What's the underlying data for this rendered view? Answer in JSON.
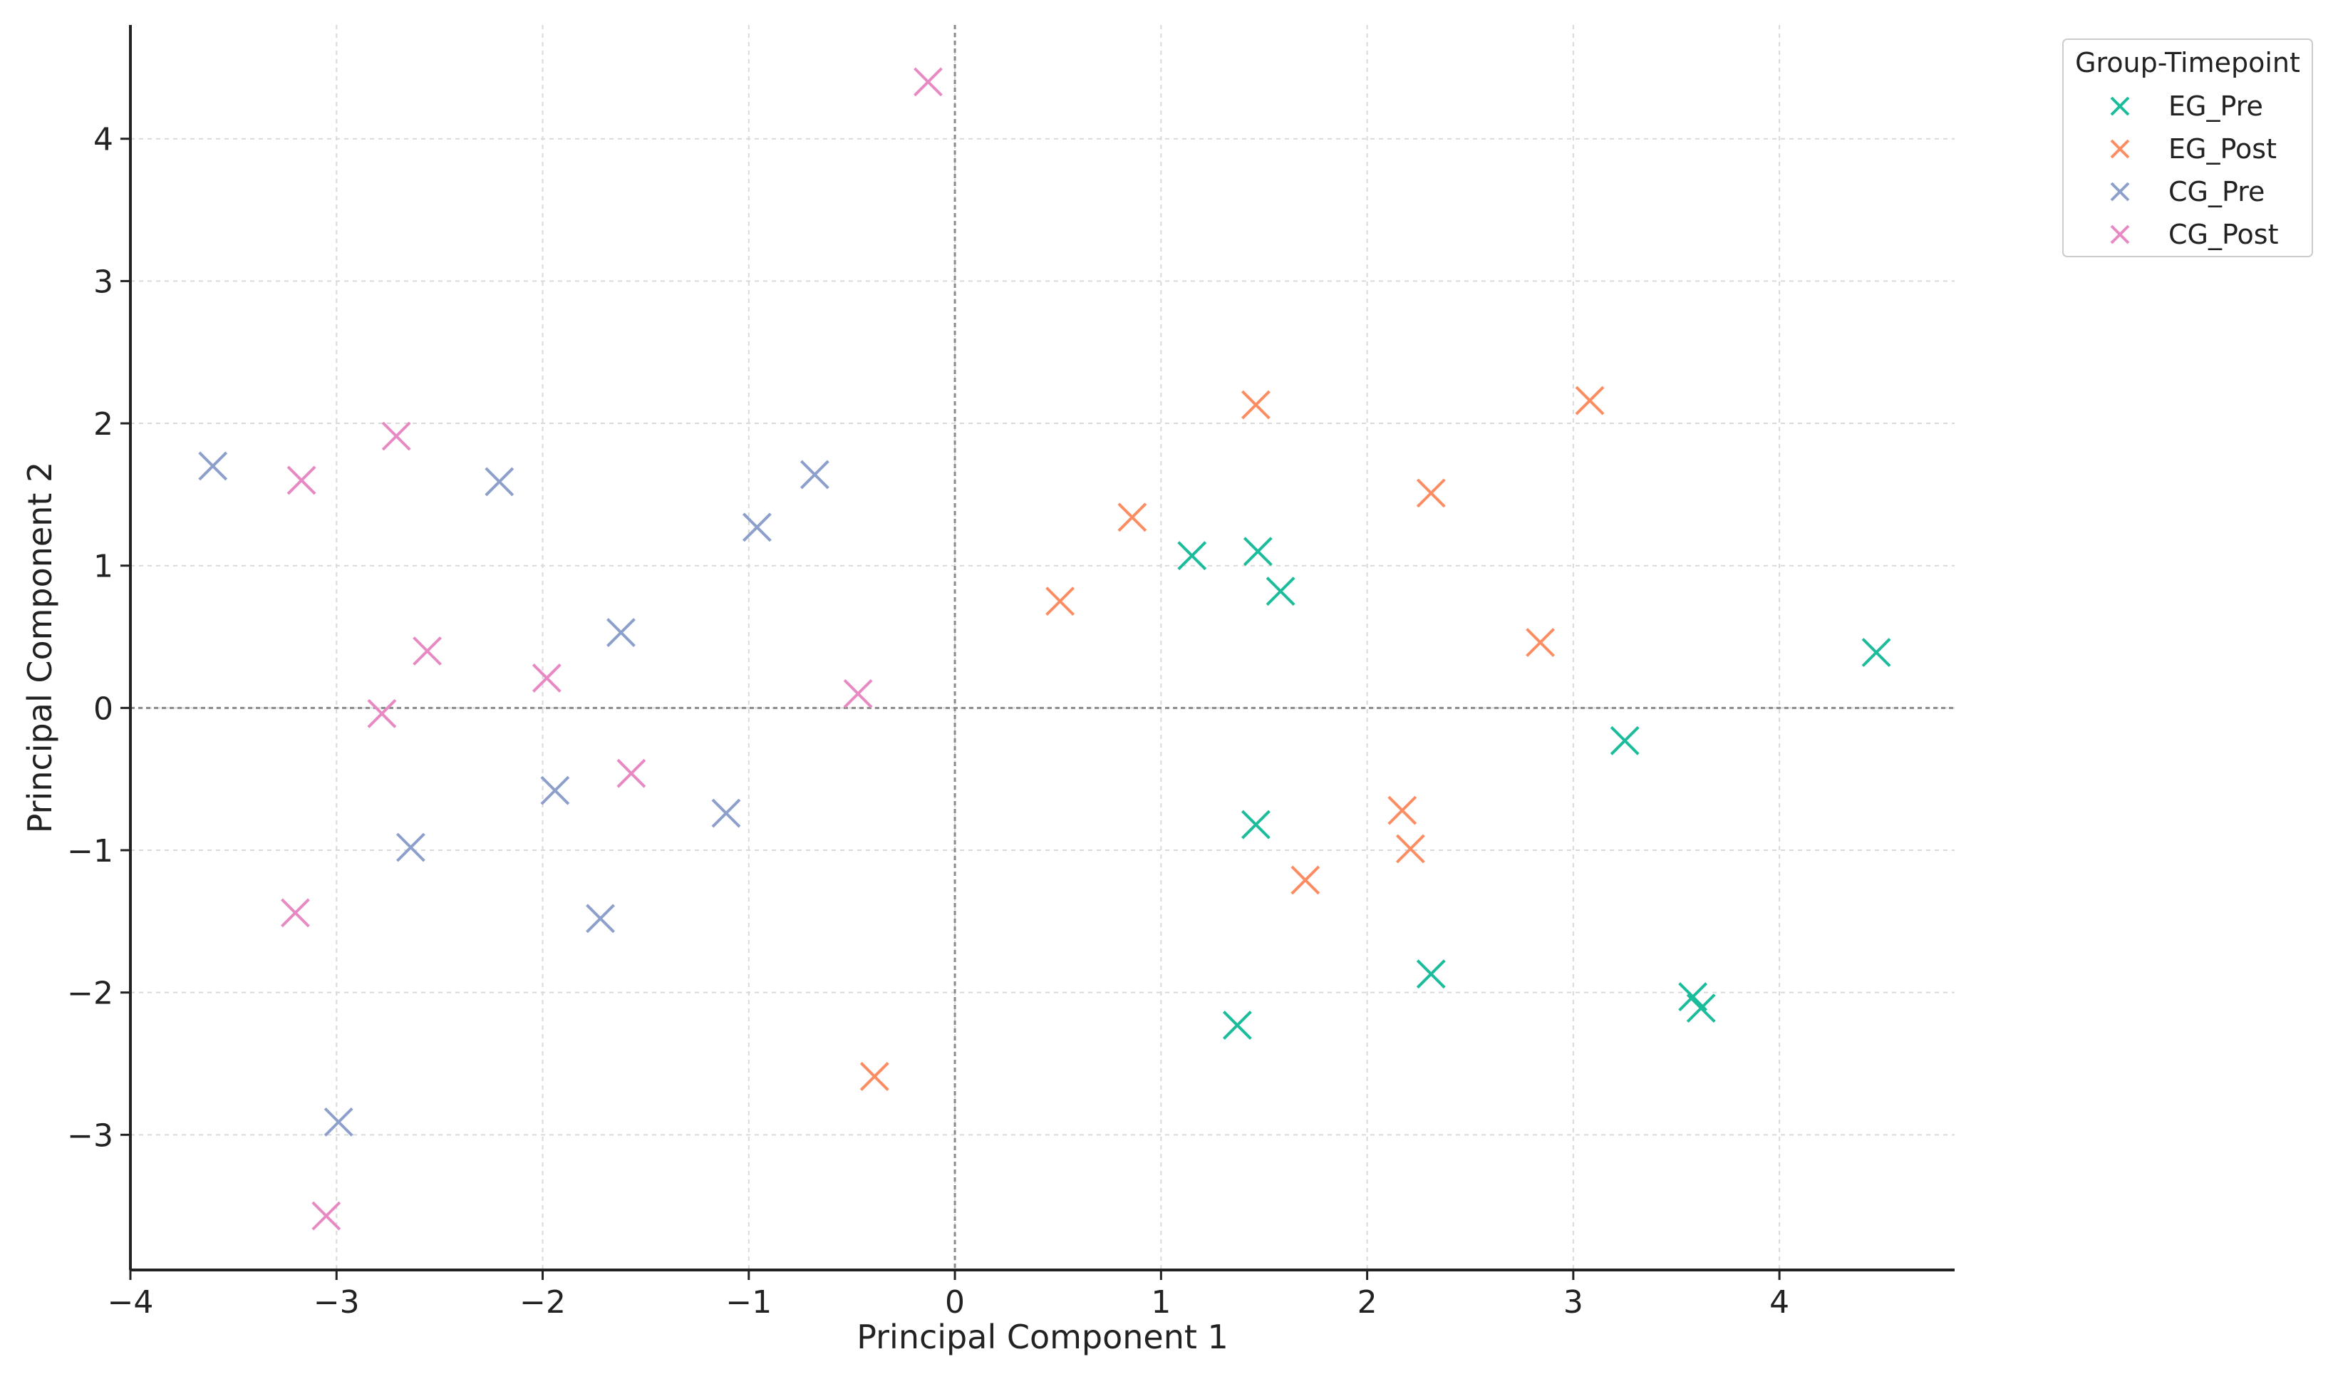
{
  "chart_data": {
    "type": "scatter",
    "title": "",
    "xlabel": "Principal Component 1",
    "ylabel": "Principal Component 2",
    "xlim": [
      -4,
      4.85
    ],
    "ylim": [
      -3.95,
      4.8
    ],
    "xticks": [
      -4,
      -3,
      -2,
      -1,
      0,
      1,
      2,
      3,
      4
    ],
    "yticks": [
      -3,
      -2,
      -1,
      0,
      1,
      2,
      3,
      4
    ],
    "xtick_labels": [
      "−4",
      "−3",
      "−2",
      "−1",
      "0",
      "1",
      "2",
      "3",
      "4"
    ],
    "ytick_labels": [
      "−3",
      "−2",
      "−1",
      "0",
      "1",
      "2",
      "3",
      "4"
    ],
    "grid": true,
    "marker": "x",
    "zero_lines": true,
    "legend": {
      "title": "Group-Timepoint",
      "position": "upper-right-outside"
    },
    "series": [
      {
        "name": "EG_Pre",
        "color": "#1abc9c",
        "points": [
          [
            1.15,
            1.07
          ],
          [
            1.47,
            1.1
          ],
          [
            1.58,
            0.82
          ],
          [
            4.47,
            0.39
          ],
          [
            3.25,
            -0.23
          ],
          [
            1.46,
            -0.82
          ],
          [
            2.31,
            -1.87
          ],
          [
            1.37,
            -2.23
          ],
          [
            3.58,
            -2.03
          ],
          [
            3.62,
            -2.11
          ]
        ]
      },
      {
        "name": "EG_Post",
        "color": "#fc8d62",
        "points": [
          [
            1.46,
            2.13
          ],
          [
            3.08,
            2.16
          ],
          [
            2.31,
            1.51
          ],
          [
            0.86,
            1.34
          ],
          [
            0.51,
            0.75
          ],
          [
            2.84,
            0.46
          ],
          [
            2.17,
            -0.72
          ],
          [
            2.21,
            -0.99
          ],
          [
            1.7,
            -1.21
          ],
          [
            -0.39,
            -2.59
          ]
        ]
      },
      {
        "name": "CG_Pre",
        "color": "#8da0cb",
        "points": [
          [
            -3.6,
            1.7
          ],
          [
            -2.21,
            1.59
          ],
          [
            -0.68,
            1.64
          ],
          [
            -0.96,
            1.27
          ],
          [
            -1.62,
            0.53
          ],
          [
            -1.94,
            -0.58
          ],
          [
            -1.11,
            -0.74
          ],
          [
            -2.64,
            -0.98
          ],
          [
            -1.72,
            -1.48
          ],
          [
            -2.99,
            -2.91
          ]
        ]
      },
      {
        "name": "CG_Post",
        "color": "#e78ac3",
        "points": [
          [
            -0.13,
            4.4
          ],
          [
            -2.71,
            1.91
          ],
          [
            -3.17,
            1.6
          ],
          [
            -2.56,
            0.4
          ],
          [
            -1.98,
            0.21
          ],
          [
            -0.47,
            0.1
          ],
          [
            -2.78,
            -0.04
          ],
          [
            -1.57,
            -0.46
          ],
          [
            -3.2,
            -1.44
          ],
          [
            -3.05,
            -3.57
          ]
        ]
      }
    ]
  }
}
